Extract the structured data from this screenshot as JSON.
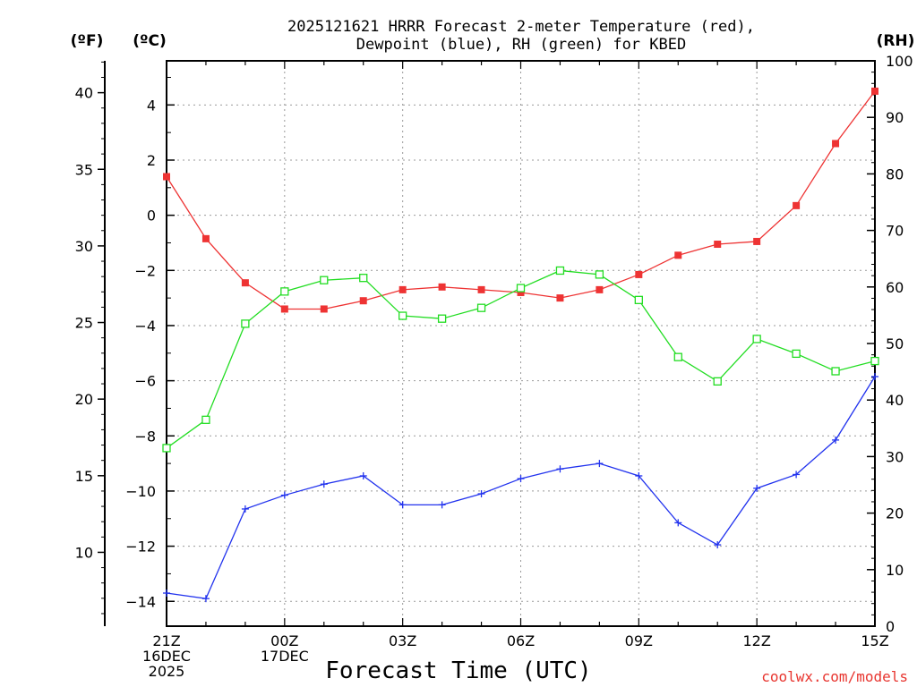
{
  "chart_data": {
    "type": "line",
    "title_line1": "2025121621 HRRR Forecast 2-meter Temperature (red),",
    "title_line2": "Dewpoint (blue), RH (green) for KBED",
    "xlabel": "Forecast Time (UTC)",
    "credit": "coolwx.com/models",
    "units": {
      "fahrenheit": "(ºF)",
      "celsius": "(ºC)",
      "rh": "(RH)"
    },
    "x_hours": [
      0,
      1,
      2,
      3,
      4,
      5,
      6,
      7,
      8,
      9,
      10,
      11,
      12,
      13,
      14,
      15,
      16,
      17,
      18
    ],
    "x_tick_hours": [
      0,
      3,
      6,
      9,
      12,
      15,
      18
    ],
    "x_tick_labels": [
      [
        "21Z",
        "16DEC",
        "2025"
      ],
      [
        "00Z",
        "17DEC"
      ],
      [
        "03Z"
      ],
      [
        "06Z"
      ],
      [
        "09Z"
      ],
      [
        "12Z"
      ],
      [
        "15Z"
      ]
    ],
    "xlim": [
      0,
      18
    ],
    "ylim_celsius": [
      -14.9,
      5.6
    ],
    "ylim_fahrenheit": [
      5.18,
      42.08
    ],
    "ylim_rh": [
      0,
      100
    ],
    "celsius_ticks": [
      4,
      2,
      0,
      -2,
      -4,
      -6,
      -8,
      -10,
      -12,
      -14
    ],
    "celsius_tick_labels": [
      "4",
      "2",
      "0",
      "−2",
      "−4",
      "−6",
      "−8",
      "−10",
      "−12",
      "−14"
    ],
    "fahrenheit_ticks": [
      40,
      35,
      30,
      25,
      20,
      15,
      10
    ],
    "rh_ticks": [
      0,
      10,
      20,
      30,
      40,
      50,
      60,
      70,
      80,
      90,
      100
    ],
    "series": [
      {
        "name": "2-meter Temperature",
        "color": "#ee3333",
        "axis": "celsius",
        "marker": "square",
        "values": [
          1.4,
          -0.85,
          -2.45,
          -3.4,
          -3.4,
          -3.1,
          -2.7,
          -2.6,
          -2.7,
          -2.8,
          -3.0,
          -2.7,
          -2.15,
          -1.45,
          -1.05,
          -0.95,
          0.35,
          2.6,
          4.5
        ]
      },
      {
        "name": "Dewpoint",
        "color": "#2233ee",
        "axis": "celsius",
        "marker": "plus",
        "values": [
          -13.7,
          -13.9,
          -10.65,
          -10.15,
          -9.75,
          -9.45,
          -10.5,
          -10.5,
          -10.1,
          -9.55,
          -9.2,
          -9.0,
          -9.45,
          -11.15,
          -11.95,
          -9.9,
          -9.4,
          -8.15,
          -5.85
        ]
      },
      {
        "name": "RH",
        "color": "#22dd22",
        "axis": "rh",
        "marker": "hollow-square",
        "values": [
          31.5,
          36.5,
          53.5,
          59.2,
          61.2,
          61.6,
          54.9,
          54.4,
          56.3,
          59.8,
          62.9,
          62.2,
          57.7,
          47.6,
          43.3,
          50.8,
          48.2,
          45.1,
          46.9
        ]
      }
    ]
  }
}
